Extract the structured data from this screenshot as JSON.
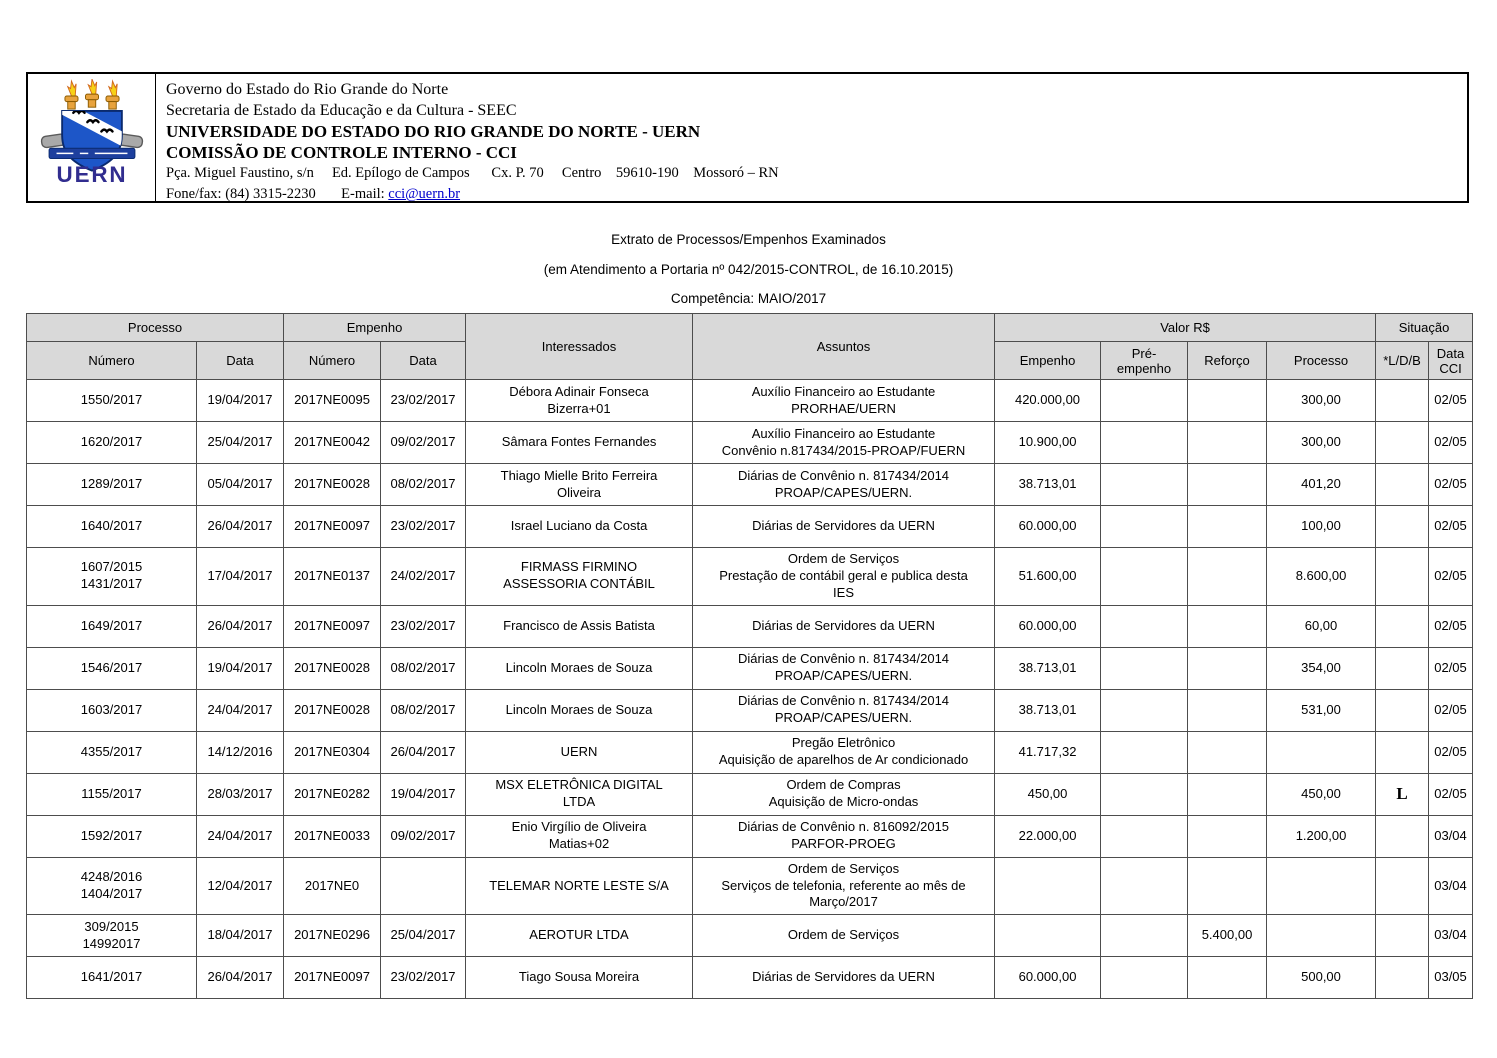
{
  "colors": {
    "link_blue": "#0000cc",
    "table_header_bg": "#d9d9d9",
    "logo_shield_blue": "#1d56c8",
    "logo_navy": "#312d8f",
    "logo_gold": "#e8a33d"
  },
  "header": {
    "logo_icon": "uern-coat-of-arms",
    "logo_text": "UERN",
    "line1": "Governo do Estado do Rio Grande do Norte",
    "line2": "Secretaria de Estado da Educação e da Cultura - SEEC",
    "line3": "UNIVERSIDADE DO ESTADO DO RIO GRANDE DO NORTE - UERN",
    "line4": "COMISSÃO DE CONTROLE INTERNO - CCI",
    "address": "Pça. Miguel Faustino, s/n     Ed. Epílogo de Campos      Cx. P. 70     Centro    59610-190    Mossoró – RN",
    "phone_label": "Fone/fax: (84) 3315-2230       E-mail: ",
    "email": "cci@uern.br"
  },
  "title": {
    "line1": "Extrato de Processos/Empenhos Examinados",
    "line2": "(em Atendimento a Portaria nº 042/2015-CONTROL, de 16.10.2015)",
    "line3": "Competência: MAIO/2017"
  },
  "table": {
    "columns": {
      "processo_group": "Processo",
      "empenho_group": "Empenho",
      "interessados": "Interessados",
      "assuntos": "Assuntos",
      "valor_group": "Valor R$",
      "situacao_group": "Situação",
      "processo_numero": "Número",
      "processo_data": "Data",
      "empenho_numero": "Número",
      "empenho_data": "Data",
      "valor_empenho": "Empenho",
      "valor_pre_empenho": "Pré-empenho",
      "valor_reforco": "Reforço",
      "valor_processo": "Processo",
      "ldb": "*L/D/B",
      "data_cci": "Data\nCCI"
    },
    "rows": [
      {
        "processo_numero": "1550/2017",
        "processo_data": "19/04/2017",
        "empenho_numero": "2017NE0095",
        "empenho_data": "23/02/2017",
        "interessados": "Débora Adinair Fonseca\nBizerra+01",
        "assuntos": "Auxílio Financeiro ao Estudante\nPRORHAE/UERN",
        "valor_empenho": "420.000,00",
        "valor_pre_empenho": "",
        "valor_reforco": "",
        "valor_processo": "300,00",
        "ldb": "",
        "data_cci": "02/05"
      },
      {
        "processo_numero": "1620/2017",
        "processo_data": "25/04/2017",
        "empenho_numero": "2017NE0042",
        "empenho_data": "09/02/2017",
        "interessados": "Sâmara Fontes Fernandes",
        "assuntos": "Auxílio Financeiro ao Estudante\nConvênio n.817434/2015-PROAP/FUERN",
        "valor_empenho": "10.900,00",
        "valor_pre_empenho": "",
        "valor_reforco": "",
        "valor_processo": "300,00",
        "ldb": "",
        "data_cci": "02/05"
      },
      {
        "processo_numero": "1289/2017",
        "processo_data": "05/04/2017",
        "empenho_numero": "2017NE0028",
        "empenho_data": "08/02/2017",
        "interessados": "Thiago Mielle Brito Ferreira\nOliveira",
        "assuntos": "Diárias de Convênio n. 817434/2014\nPROAP/CAPES/UERN.",
        "valor_empenho": "38.713,01",
        "valor_pre_empenho": "",
        "valor_reforco": "",
        "valor_processo": "401,20",
        "ldb": "",
        "data_cci": "02/05"
      },
      {
        "processo_numero": "1640/2017",
        "processo_data": "26/04/2017",
        "empenho_numero": "2017NE0097",
        "empenho_data": "23/02/2017",
        "interessados": "Israel Luciano da Costa",
        "assuntos": "Diárias de Servidores da UERN",
        "valor_empenho": "60.000,00",
        "valor_pre_empenho": "",
        "valor_reforco": "",
        "valor_processo": "100,00",
        "ldb": "",
        "data_cci": "02/05"
      },
      {
        "processo_numero": "1607/2015\n1431/2017",
        "processo_data": "17/04/2017",
        "empenho_numero": "2017NE0137",
        "empenho_data": "24/02/2017",
        "interessados": "FIRMASS FIRMINO\nASSESSORIA CONTÁBIL",
        "assuntos": "Ordem de Serviços\nPrestação de contábil geral e publica desta\nIES",
        "valor_empenho": "51.600,00",
        "valor_pre_empenho": "",
        "valor_reforco": "",
        "valor_processo": "8.600,00",
        "ldb": "",
        "data_cci": "02/05"
      },
      {
        "processo_numero": "1649/2017",
        "processo_data": "26/04/2017",
        "empenho_numero": "2017NE0097",
        "empenho_data": "23/02/2017",
        "interessados": "Francisco de Assis Batista",
        "assuntos": "Diárias de Servidores da UERN",
        "valor_empenho": "60.000,00",
        "valor_pre_empenho": "",
        "valor_reforco": "",
        "valor_processo": "60,00",
        "ldb": "",
        "data_cci": "02/05"
      },
      {
        "processo_numero": "1546/2017",
        "processo_data": "19/04/2017",
        "empenho_numero": "2017NE0028",
        "empenho_data": "08/02/2017",
        "interessados": "Lincoln Moraes de Souza",
        "assuntos": "Diárias de Convênio n. 817434/2014\nPROAP/CAPES/UERN.",
        "valor_empenho": "38.713,01",
        "valor_pre_empenho": "",
        "valor_reforco": "",
        "valor_processo": "354,00",
        "ldb": "",
        "data_cci": "02/05"
      },
      {
        "processo_numero": "1603/2017",
        "processo_data": "24/04/2017",
        "empenho_numero": "2017NE0028",
        "empenho_data": "08/02/2017",
        "interessados": "Lincoln Moraes de Souza",
        "assuntos": "Diárias de Convênio n. 817434/2014\nPROAP/CAPES/UERN.",
        "valor_empenho": "38.713,01",
        "valor_pre_empenho": "",
        "valor_reforco": "",
        "valor_processo": "531,00",
        "ldb": "",
        "data_cci": "02/05"
      },
      {
        "processo_numero": "4355/2017",
        "processo_data": "14/12/2016",
        "empenho_numero": "2017NE0304",
        "empenho_data": "26/04/2017",
        "interessados": "UERN",
        "assuntos": "Pregão Eletrônico\nAquisição de aparelhos de Ar condicionado",
        "valor_empenho": "41.717,32",
        "valor_pre_empenho": "",
        "valor_reforco": "",
        "valor_processo": "",
        "ldb": "",
        "data_cci": "02/05"
      },
      {
        "processo_numero": "1155/2017",
        "processo_data": "28/03/2017",
        "empenho_numero": "2017NE0282",
        "empenho_data": "19/04/2017",
        "interessados": "MSX ELETRÔNICA DIGITAL\nLTDA",
        "assuntos": "Ordem de Compras\nAquisição de Micro-ondas",
        "valor_empenho": "450,00",
        "valor_pre_empenho": "",
        "valor_reforco": "",
        "valor_processo": "450,00",
        "ldb": "L",
        "data_cci": "02/05"
      },
      {
        "processo_numero": "1592/2017",
        "processo_data": "24/04/2017",
        "empenho_numero": "2017NE0033",
        "empenho_data": "09/02/2017",
        "interessados": "Enio Virgílio de Oliveira\nMatias+02",
        "assuntos": "Diárias de Convênio n. 816092/2015\nPARFOR-PROEG",
        "valor_empenho": "22.000,00",
        "valor_pre_empenho": "",
        "valor_reforco": "",
        "valor_processo": "1.200,00",
        "ldb": "",
        "data_cci": "03/04"
      },
      {
        "processo_numero": "4248/2016\n1404/2017",
        "processo_data": "12/04/2017",
        "empenho_numero": "2017NE0",
        "empenho_data": "",
        "interessados": "TELEMAR NORTE LESTE S/A",
        "assuntos": "Ordem de Serviços\nServiços de telefonia, referente ao mês de\nMarço/2017",
        "valor_empenho": "",
        "valor_pre_empenho": "",
        "valor_reforco": "",
        "valor_processo": "",
        "ldb": "",
        "data_cci": "03/04"
      },
      {
        "processo_numero": "309/2015\n14992017",
        "processo_data": "18/04/2017",
        "empenho_numero": "2017NE0296",
        "empenho_data": "25/04/2017",
        "interessados": "AEROTUR LTDA",
        "assuntos": "Ordem de Serviços",
        "valor_empenho": "",
        "valor_pre_empenho": "",
        "valor_reforco": "5.400,00",
        "valor_processo": "",
        "ldb": "",
        "data_cci": "03/04"
      },
      {
        "processo_numero": "1641/2017",
        "processo_data": "26/04/2017",
        "empenho_numero": "2017NE0097",
        "empenho_data": "23/02/2017",
        "interessados": "Tiago Sousa Moreira",
        "assuntos": "Diárias de Servidores da UERN",
        "valor_empenho": "60.000,00",
        "valor_pre_empenho": "",
        "valor_reforco": "",
        "valor_processo": "500,00",
        "ldb": "",
        "data_cci": "03/05"
      }
    ]
  }
}
